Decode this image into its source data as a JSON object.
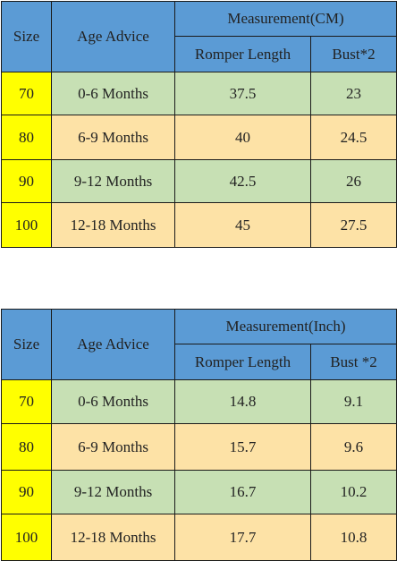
{
  "tables": [
    {
      "measurement_header": "Measurement(CM)",
      "size_header": "Size",
      "age_header": "Age Advice",
      "col_romper": "Romper Length",
      "col_bust": "Bust*2",
      "rows": [
        {
          "size": "70",
          "age": "0-6 Months",
          "romper": "37.5",
          "bust": "23"
        },
        {
          "size": "80",
          "age": "6-9 Months",
          "romper": "40",
          "bust": "24.5"
        },
        {
          "size": "90",
          "age": "9-12 Months",
          "romper": "42.5",
          "bust": "26"
        },
        {
          "size": "100",
          "age": "12-18 Months",
          "romper": "45",
          "bust": "27.5"
        }
      ]
    },
    {
      "measurement_header": "Measurement(Inch)",
      "size_header": "Size",
      "age_header": "Age Advice",
      "col_romper": "Romper Length",
      "col_bust": "Bust *2",
      "rows": [
        {
          "size": "70",
          "age": "0-6 Months",
          "romper": "14.8",
          "bust": "9.1"
        },
        {
          "size": "80",
          "age": "6-9 Months",
          "romper": "15.7",
          "bust": "9.6"
        },
        {
          "size": "90",
          "age": "9-12 Months",
          "romper": "16.7",
          "bust": "10.2"
        },
        {
          "size": "100",
          "age": "12-18 Months",
          "romper": "17.7",
          "bust": "10.8"
        }
      ]
    }
  ],
  "colors": {
    "header_blue": "#5b9bd5",
    "size_yellow": "#ffff00",
    "row_green": "#c7e0b4",
    "row_peach": "#fde2a6"
  }
}
